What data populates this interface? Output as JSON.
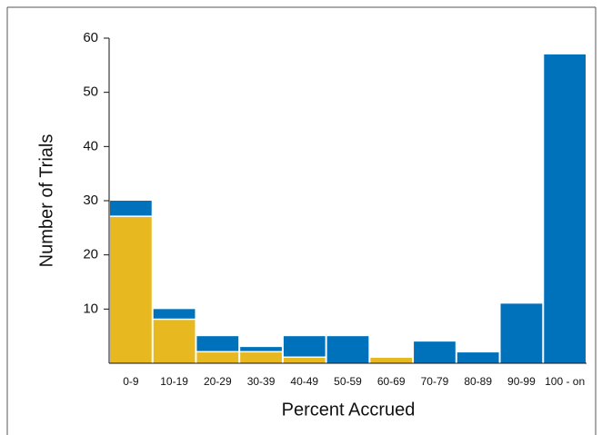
{
  "chart_data": {
    "type": "bar",
    "stacked": true,
    "x_label": "Percent Accrued",
    "y_label": "Number of Trials",
    "categories": [
      "0-9",
      "10-19",
      "20-29",
      "30-39",
      "40-49",
      "50-59",
      "60-69",
      "70-79",
      "80-89",
      "90-99",
      "100 - on"
    ],
    "series": [
      {
        "color": "#e8b820",
        "values": [
          27,
          8,
          2,
          2,
          1,
          0,
          1,
          0,
          0,
          0,
          0
        ]
      },
      {
        "color": "#0072bc",
        "values": [
          3,
          2,
          3,
          1,
          4,
          5,
          0,
          4,
          2,
          11,
          57
        ]
      }
    ],
    "ylim": [
      0,
      60
    ],
    "yticks": [
      10,
      20,
      30,
      40,
      50,
      60
    ]
  }
}
